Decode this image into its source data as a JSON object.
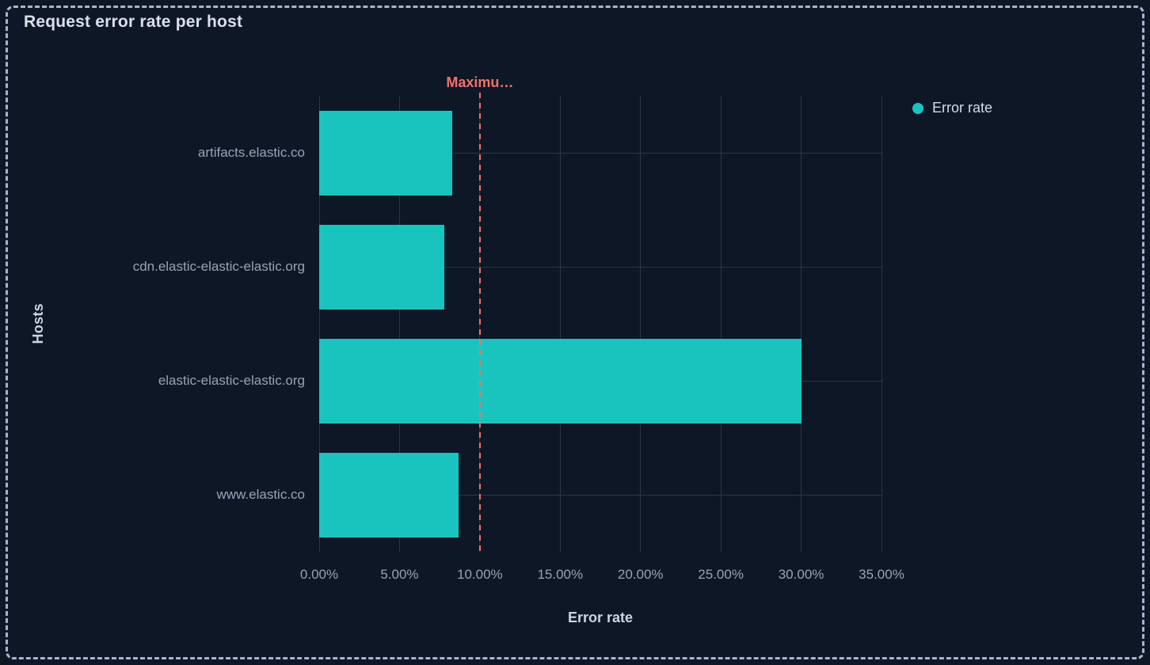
{
  "panel": {
    "title": "Request error rate per host"
  },
  "legend": {
    "position": "right",
    "items": [
      {
        "label": "Error rate",
        "color": "#1ac4be"
      }
    ]
  },
  "chart_data": {
    "type": "bar",
    "orientation": "horizontal",
    "title": "Request error rate per host",
    "categories": [
      "artifacts.elastic.co",
      "cdn.elastic-elastic-elastic.org",
      "elastic-elastic-elastic.org",
      "www.elastic.co"
    ],
    "series": [
      {
        "name": "Error rate",
        "values": [
          8.3,
          7.8,
          30.0,
          8.7
        ]
      }
    ],
    "value_unit": "%",
    "xlabel": "Error rate",
    "ylabel": "Hosts",
    "xlim": [
      0,
      35
    ],
    "xtick_labels": [
      "0.00%",
      "5.00%",
      "10.00%",
      "15.00%",
      "20.00%",
      "25.00%",
      "30.00%",
      "35.00%"
    ],
    "grid": true,
    "legend_position": "right",
    "annotation": {
      "label": "Maximu…",
      "x_value": 10,
      "style": "dashed",
      "color": "#f4716b"
    }
  },
  "colors": {
    "background": "#0d1726",
    "bar": "#1ac4be",
    "gridline": "#2b3547",
    "annotation": "#f4716b",
    "frame_border": "#a7b5cd",
    "title_text": "#dae0ea",
    "tick_text": "#98a3b8",
    "axis_title_text": "#ced5e0"
  }
}
